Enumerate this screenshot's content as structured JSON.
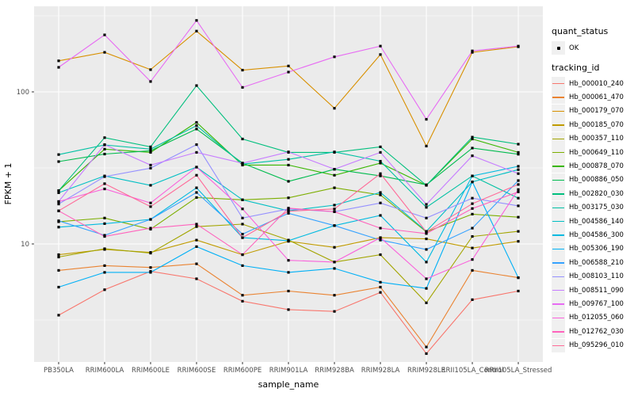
{
  "chart_data": {
    "type": "line",
    "title": "",
    "xlabel": "sample_name",
    "ylabel": "FPKM + 1",
    "y_scale": "log10",
    "ylim": [
      1.7,
      365
    ],
    "grid": "on",
    "legend_position": "right",
    "panel_bg": "#EBEBEB",
    "grid_color": "#FFFFFF",
    "point_color": "#000000",
    "tick_label_color": "#4D4D4D",
    "y_ticks": [
      {
        "label": "100",
        "value": 100
      },
      {
        "label": "10",
        "value": 10
      }
    ],
    "y_minor_ticks": [
      316.23,
      31.623,
      3.1623
    ],
    "categories": [
      "PB350LA",
      "RRIM600LA",
      "RRIM600LE",
      "RRIM600SE",
      "RRIM600PE",
      "RRIM901LA",
      "RRIM928BA",
      "RRIM928LA",
      "RRIM928LE",
      "RRII105LA_Control",
      "RRII105LA_Stressed"
    ],
    "legend": {
      "quant_title": "quant_status",
      "quant_items": [
        {
          "label": "OK"
        }
      ],
      "series_title": "tracking_id"
    },
    "series": [
      {
        "name": "Hb_000010_240",
        "color": "#F8766D",
        "values": [
          3.4,
          5.0,
          6.6,
          5.9,
          4.2,
          3.7,
          3.6,
          4.8,
          1.9,
          4.3,
          4.9
        ]
      },
      {
        "name": "Hb_000061_470",
        "color": "#EA8331",
        "values": [
          6.7,
          7.2,
          7.0,
          7.4,
          4.6,
          4.9,
          4.6,
          5.2,
          2.1,
          6.7,
          6.0
        ]
      },
      {
        "name": "Hb_000179_070",
        "color": "#D89000",
        "values": [
          160,
          182,
          140,
          251,
          139,
          148,
          78,
          176,
          44,
          182,
          198
        ]
      },
      {
        "name": "Hb_000185_070",
        "color": "#C09B00",
        "values": [
          8.5,
          9.2,
          8.8,
          10.6,
          8.5,
          10.4,
          9.5,
          11.0,
          10.8,
          9.4,
          10.4
        ]
      },
      {
        "name": "Hb_000357_110",
        "color": "#A3A500",
        "values": [
          8.2,
          9.3,
          8.7,
          13.0,
          13.5,
          10.6,
          7.6,
          8.5,
          4.1,
          11.2,
          12.1
        ]
      },
      {
        "name": "Hb_000649_110",
        "color": "#7CAE00",
        "values": [
          14.0,
          14.8,
          12.5,
          20.2,
          19.5,
          20.1,
          23.4,
          21.0,
          12.0,
          15.7,
          15.0
        ]
      },
      {
        "name": "Hb_000878_070",
        "color": "#39B600",
        "values": [
          22.4,
          42,
          40,
          63,
          33,
          33,
          28.3,
          34,
          24.3,
          49,
          40
        ]
      },
      {
        "name": "Hb_000886_050",
        "color": "#00BB4E",
        "values": [
          34.8,
          39,
          41,
          57,
          34,
          25.8,
          31,
          28,
          24.5,
          42.7,
          38.9
        ]
      },
      {
        "name": "Hb_002820_030",
        "color": "#00BF7D",
        "values": [
          22.4,
          50,
          43.5,
          110,
          49,
          40,
          40,
          43.5,
          24.3,
          50.4,
          45.3
        ]
      },
      {
        "name": "Hb_003175_030",
        "color": "#00C1A3",
        "values": [
          38.7,
          44.8,
          42,
          60,
          33.5,
          36,
          40.3,
          35,
          17.4,
          28,
          20
        ]
      },
      {
        "name": "Hb_004586_140",
        "color": "#00BFC4",
        "values": [
          21.7,
          28,
          24.3,
          32,
          19.5,
          16.5,
          18,
          21.8,
          12.1,
          25.6,
          30.8
        ]
      },
      {
        "name": "Hb_004586_300",
        "color": "#00BAE0",
        "values": [
          12.9,
          13.6,
          14.5,
          23.4,
          11.0,
          10.5,
          13.2,
          15.4,
          7.6,
          28,
          32.4
        ]
      },
      {
        "name": "Hb_005306_190",
        "color": "#00B0F6",
        "values": [
          5.2,
          6.5,
          6.5,
          9.6,
          7.2,
          6.5,
          6.9,
          5.6,
          5.1,
          25.6,
          6.0
        ]
      },
      {
        "name": "Hb_006588_210",
        "color": "#35A2FF",
        "values": [
          14.2,
          11.4,
          14.5,
          21.8,
          11.6,
          15.9,
          13.2,
          10.6,
          9.2,
          12.7,
          26.1
        ]
      },
      {
        "name": "Hb_008103_110",
        "color": "#9590FF",
        "values": [
          18.3,
          27.7,
          31.5,
          45,
          14.8,
          17.0,
          16.3,
          18.6,
          14.8,
          20,
          17.8
        ]
      },
      {
        "name": "Hb_008511_090",
        "color": "#C77CFF",
        "values": [
          19.0,
          45,
          33,
          40,
          34,
          40.3,
          31,
          40,
          18.2,
          38,
          29
        ]
      },
      {
        "name": "Hb_009767_100",
        "color": "#E76BF3",
        "values": [
          145,
          237,
          117,
          295,
          107,
          135,
          170,
          200,
          66,
          186,
          200
        ]
      },
      {
        "name": "Hb_012055_060",
        "color": "#FA62DB",
        "values": [
          19.0,
          23.0,
          18.6,
          32,
          17.0,
          7.8,
          7.6,
          11.0,
          5.9,
          7.9,
          22.8
        ]
      },
      {
        "name": "Hb_012762_030",
        "color": "#FF62BC",
        "values": [
          16.5,
          11.2,
          12.7,
          13.5,
          8.5,
          17.2,
          16.3,
          12.7,
          11.7,
          17.1,
          22.0
        ]
      },
      {
        "name": "Hb_095296_010",
        "color": "#FF6A98",
        "values": [
          16.5,
          24.9,
          17.6,
          28.3,
          11.0,
          16.4,
          17.0,
          29,
          12.0,
          18.4,
          24.6
        ]
      }
    ]
  }
}
